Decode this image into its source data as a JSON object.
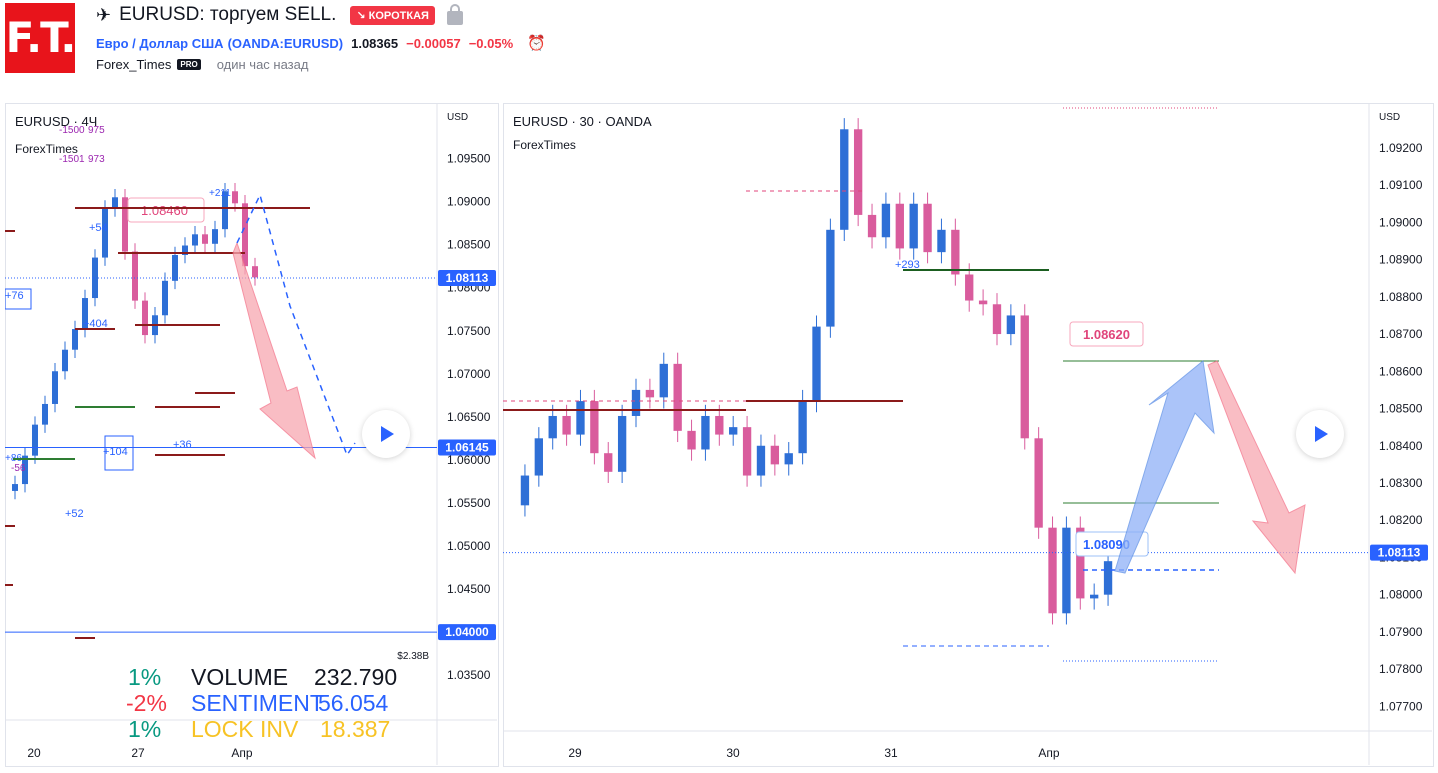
{
  "header": {
    "logo_text": "F.T.",
    "title": "EURUSD: торгуем SELL.",
    "badge": "↘ КОРОТКАЯ",
    "symbol_name": "Евро / Доллар США",
    "symbol_code": "(OANDA:EURUSD)",
    "price": "1.08365",
    "change": "−0.00057",
    "change_pct": "−0.05%",
    "author": "Forex_Times",
    "pro_badge": "PRO",
    "time_ago": "один час назад"
  },
  "left_panel": {
    "title": "EURUSD · 4Ч",
    "subtitle": "ForexTimes",
    "currency": "USD",
    "stats": [
      {
        "pct": "1%",
        "pct_color": "#089981",
        "label": "VOLUME",
        "label_color": "#131722",
        "value": "232.790",
        "value_color": "#131722"
      },
      {
        "pct": "-2%",
        "pct_color": "#f23645",
        "label": "SENTIMENT",
        "label_color": "#2962ff",
        "value": "56.054",
        "value_color": "#2962ff"
      },
      {
        "pct": "1%",
        "pct_color": "#089981",
        "label": "LOCK INV",
        "label_color": "#f7c325",
        "value": "18.387",
        "value_color": "#f7c325"
      }
    ]
  },
  "right_panel": {
    "title": "EURUSD · 30 · OANDA",
    "subtitle": "ForexTimes",
    "currency": "USD"
  },
  "chart_data": [
    {
      "type": "candlestick",
      "title": "EURUSD · 4Ч",
      "subtitle": "ForexTimes",
      "ylabel": "USD",
      "ylim": [
        1.0305,
        1.0975
      ],
      "y_ticks": [
        "1.09500",
        "1.09000",
        "1.08500",
        "1.08000",
        "1.07500",
        "1.07000",
        "1.06500",
        "1.06000",
        "1.05500",
        "1.05000",
        "1.04500",
        "1.04000",
        "1.03500"
      ],
      "x_ticks": [
        "20",
        "27",
        "Апр"
      ],
      "price_labels": [
        {
          "text": "1.08113",
          "value": 1.08113,
          "color": "#2962ff"
        },
        {
          "text": "1.06145",
          "value": 1.06145,
          "color": "#2962ff"
        },
        {
          "text": "1.04000",
          "value": 1.04,
          "color": "#2962ff"
        }
      ],
      "annotations": [
        "1.08460",
        "+54",
        "+404",
        "+36",
        "+104",
        "+52",
        "+76",
        "-1500",
        "-1501",
        "975",
        "973",
        "+86",
        "-56",
        "+211"
      ],
      "corner_text": "$2.38B",
      "close_series": [
        1.0572,
        1.0605,
        1.0641,
        1.0665,
        1.0703,
        1.0728,
        1.0752,
        1.0788,
        1.0835,
        1.0892,
        1.0905,
        1.0842,
        1.0785,
        1.0745,
        1.0768,
        1.0808,
        1.0838,
        1.0849,
        1.0862,
        1.0851,
        1.0868,
        1.0912,
        1.0898,
        1.0825,
        1.0812
      ]
    },
    {
      "type": "candlestick",
      "title": "EURUSD · 30 · OANDA",
      "subtitle": "ForexTimes",
      "ylabel": "USD",
      "ylim": [
        1.0765,
        1.0924
      ],
      "y_ticks": [
        "1.09200",
        "1.09100",
        "1.09000",
        "1.08900",
        "1.08800",
        "1.08700",
        "1.08600",
        "1.08500",
        "1.08400",
        "1.08300",
        "1.08200",
        "1.08100",
        "1.08000",
        "1.07900",
        "1.07800",
        "1.07700"
      ],
      "x_ticks": [
        "29",
        "30",
        "31",
        "Апр"
      ],
      "price_labels": [
        {
          "text": "1.08113",
          "value": 1.08113,
          "color": "#2962ff"
        }
      ],
      "annotations": [
        "1.08620",
        "1.08090",
        "+293"
      ],
      "close_series": [
        1.0832,
        1.0842,
        1.0848,
        1.0843,
        1.0852,
        1.0838,
        1.0833,
        1.0848,
        1.0855,
        1.0853,
        1.0862,
        1.0844,
        1.0839,
        1.0848,
        1.0843,
        1.0845,
        1.0832,
        1.084,
        1.0835,
        1.0838,
        1.0852,
        1.0872,
        1.0898,
        1.0925,
        1.0902,
        1.0896,
        1.0905,
        1.0893,
        1.0905,
        1.0892,
        1.0898,
        1.0886,
        1.0879,
        1.0878,
        1.087,
        1.0875,
        1.0842,
        1.0818,
        1.0795,
        1.0818,
        1.0799,
        1.08,
        1.0809
      ],
      "projection": {
        "target_high": 1.0862,
        "target_low": 1.0811
      }
    }
  ]
}
